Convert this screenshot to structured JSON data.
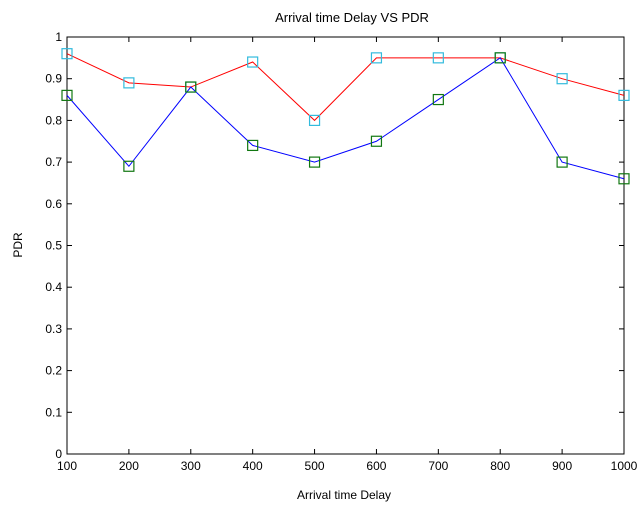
{
  "chart_data": {
    "type": "line",
    "title": "Arrival time Delay VS PDR",
    "xlabel": "Arrival time Delay",
    "ylabel": "PDR",
    "x": [
      100,
      200,
      300,
      400,
      500,
      600,
      700,
      800,
      900,
      1000
    ],
    "xlim": [
      100,
      1000
    ],
    "ylim": [
      0,
      1
    ],
    "xticks": [
      100,
      200,
      300,
      400,
      500,
      600,
      700,
      800,
      900,
      1000
    ],
    "yticks": [
      0,
      0.1,
      0.2,
      0.3,
      0.4,
      0.5,
      0.6,
      0.7,
      0.8,
      0.9,
      1
    ],
    "grid": false,
    "legend": "none",
    "series": [
      {
        "values": [
          0.96,
          0.89,
          0.88,
          0.94,
          0.8,
          0.95,
          0.95,
          0.95,
          0.9,
          0.86
        ],
        "line_color": "#ff0000",
        "marker": "square",
        "marker_color": "#33bbdd"
      },
      {
        "values": [
          0.86,
          0.69,
          0.88,
          0.74,
          0.7,
          0.75,
          0.85,
          0.95,
          0.7,
          0.66
        ],
        "line_color": "#0000ff",
        "marker": "square",
        "marker_color": "#117711"
      }
    ]
  }
}
